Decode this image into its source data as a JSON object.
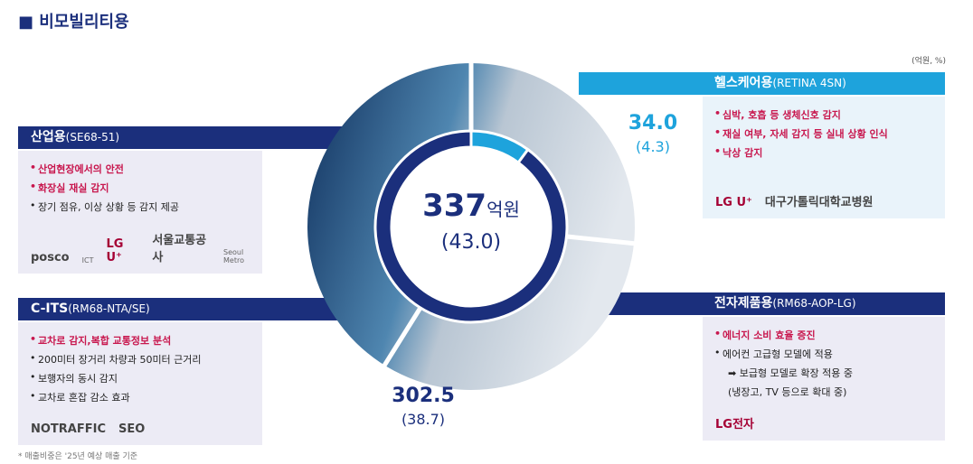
{
  "header": {
    "title": "비모빌리티용",
    "unit_note": "(억원, %)"
  },
  "chart_data": {
    "type": "donut",
    "total": 337,
    "total_unit": "억원",
    "total_share_label": "(43.0)",
    "values": [
      34.0,
      302.5
    ],
    "value_labels": [
      "34.0",
      "302.5"
    ],
    "share_labels": [
      "(4.3)",
      "(38.7)"
    ],
    "colors": [
      "#1ea3dc",
      "#1b2f7c"
    ]
  },
  "panels": [
    {
      "title": "산업용",
      "model": "(SE68-51)",
      "color": "#1b2f7c",
      "items": [
        {
          "text": "산업현장에서의 안전",
          "emphasis": true,
          "bullet": true
        },
        {
          "text": "화장실 재실 감지",
          "emphasis": true,
          "bullet": true
        },
        {
          "text": "장기 점유, 이상 상황 등 감지 제공",
          "emphasis": false,
          "bullet": true
        }
      ],
      "logos": [
        "posco",
        "ICT",
        "LG U⁺",
        "서울교통공사",
        "Seoul Metro"
      ]
    },
    {
      "title": "C-ITS",
      "model": "(RM68-NTA/SE)",
      "color": "#1b2f7c",
      "items": [
        {
          "text": "교차로 감지,복합 교통정보 분석",
          "emphasis": true,
          "bullet": true
        },
        {
          "text": "200미터 장거리 차량과 50미터 근거리",
          "emphasis": false,
          "bullet": true
        },
        {
          "text": "보행자의 동시 감지",
          "emphasis": false,
          "bullet": true
        },
        {
          "text": "교차로 혼잡 감소 효과",
          "emphasis": false,
          "bullet": true
        }
      ],
      "logos": [
        "NOTRAFFIC",
        "SEO"
      ]
    },
    {
      "title": "헬스케어용",
      "model": "(RETINA 4SN)",
      "color": "#1ea3dc",
      "items": [
        {
          "text": "심박, 호흡 등 생체신호 감지",
          "emphasis": true,
          "bullet": true
        },
        {
          "text": "재실 여부, 자세 감지 등 실내 상황 인식",
          "emphasis": true,
          "bullet": true
        },
        {
          "text": "낙상 감지",
          "emphasis": true,
          "bullet": true
        }
      ],
      "logos": [
        "LG U⁺",
        "대구가톨릭대학교병원"
      ]
    },
    {
      "title": "전자제품용",
      "model": "(RM68-AOP-LG)",
      "color": "#1b2f7c",
      "items": [
        {
          "text": "에너지 소비 효율 증진",
          "emphasis": true,
          "bullet": true
        },
        {
          "text": "에어컨 고급형 모델에 적용",
          "emphasis": false,
          "bullet": true
        },
        {
          "text": "➡ 보급형 모델로 확장 적용 중",
          "emphasis": false,
          "bullet": false
        },
        {
          "text": "(냉장고, TV 등으로 확대 중)",
          "emphasis": false,
          "bullet": false
        }
      ],
      "logos": [
        "LG전자"
      ]
    }
  ],
  "footnote": "* 매출비중은 '25년 예상 매출 기준"
}
